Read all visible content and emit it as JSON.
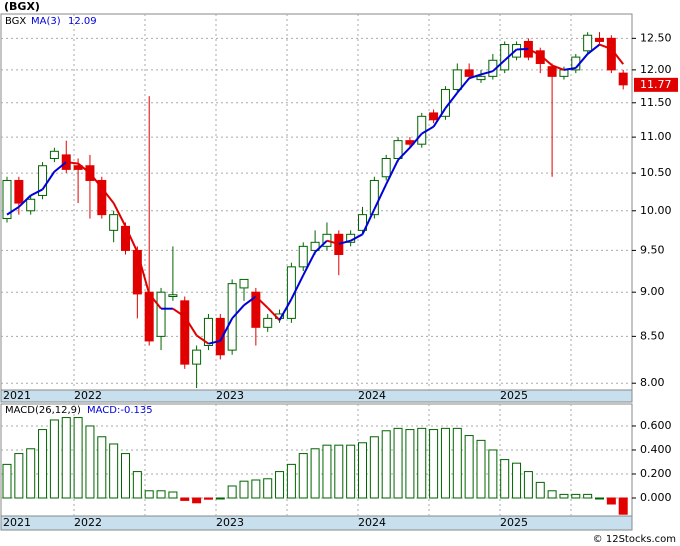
{
  "chart_data": [
    {
      "type": "candlestick",
      "title": "(BGX)",
      "name": "BGX",
      "ma_name": "MA(3)",
      "ma_last": 12.09,
      "last_price": 11.77,
      "open": [
        9.9,
        10.4,
        10.0,
        10.2,
        10.7,
        10.75,
        10.6,
        10.6,
        10.4,
        9.75,
        9.8,
        9.5,
        9.0,
        8.5,
        8.95,
        8.9,
        8.2,
        8.4,
        8.7,
        8.35,
        9.05,
        9.0,
        8.6,
        8.7,
        8.7,
        9.3,
        9.5,
        9.55,
        9.7,
        9.6,
        9.75,
        9.95,
        10.45,
        10.7,
        10.95,
        10.9,
        11.35,
        11.3,
        11.7,
        12.0,
        11.85,
        11.9,
        12.0,
        12.2,
        12.45,
        12.3,
        12.05,
        11.9,
        12.0,
        12.3,
        12.5,
        12.5,
        11.95
      ],
      "high": [
        10.45,
        10.45,
        10.2,
        10.65,
        10.85,
        10.95,
        10.7,
        10.75,
        10.45,
        10.0,
        9.85,
        9.55,
        11.6,
        9.05,
        9.55,
        8.95,
        8.4,
        8.75,
        8.75,
        9.15,
        9.15,
        9.05,
        8.75,
        8.8,
        9.35,
        9.6,
        9.75,
        9.85,
        9.75,
        9.75,
        10.05,
        10.45,
        10.75,
        11.0,
        11.0,
        11.35,
        11.4,
        11.75,
        12.1,
        12.1,
        12.0,
        12.25,
        12.45,
        12.45,
        12.5,
        12.35,
        12.1,
        12.05,
        12.25,
        12.6,
        12.6,
        12.55,
        12.0
      ],
      "low": [
        9.85,
        9.95,
        9.95,
        10.15,
        10.65,
        10.5,
        10.1,
        9.9,
        9.9,
        9.6,
        9.45,
        8.7,
        8.4,
        8.35,
        8.9,
        8.15,
        7.95,
        8.35,
        8.25,
        8.3,
        8.9,
        8.4,
        8.55,
        8.65,
        8.65,
        9.25,
        9.45,
        9.5,
        9.2,
        9.55,
        9.7,
        9.9,
        10.4,
        10.65,
        10.85,
        10.85,
        11.2,
        11.25,
        11.65,
        11.85,
        11.8,
        11.85,
        11.95,
        12.15,
        12.15,
        11.95,
        10.45,
        11.85,
        11.95,
        12.25,
        12.4,
        11.95,
        11.7
      ],
      "close": [
        10.4,
        10.1,
        10.15,
        10.6,
        10.8,
        10.55,
        10.55,
        10.4,
        9.95,
        9.95,
        9.5,
        8.98,
        8.45,
        9.0,
        8.97,
        8.2,
        8.35,
        8.7,
        8.3,
        9.1,
        9.15,
        8.6,
        8.7,
        8.75,
        9.3,
        9.55,
        9.6,
        9.7,
        9.45,
        9.7,
        9.95,
        10.4,
        10.7,
        10.95,
        10.9,
        11.3,
        11.25,
        11.7,
        12.0,
        11.9,
        11.9,
        12.15,
        12.4,
        12.4,
        12.2,
        12.1,
        11.9,
        12.0,
        12.2,
        12.55,
        12.45,
        12.0,
        11.77
      ],
      "ma": [
        9.95,
        10.05,
        10.2,
        10.28,
        10.52,
        10.65,
        10.63,
        10.5,
        10.3,
        10.1,
        9.8,
        9.48,
        8.98,
        8.81,
        8.81,
        8.72,
        8.51,
        8.42,
        8.45,
        8.7,
        8.85,
        8.95,
        8.82,
        8.68,
        8.92,
        9.2,
        9.48,
        9.62,
        9.58,
        9.62,
        9.7,
        10.02,
        10.35,
        10.68,
        10.85,
        11.05,
        11.15,
        11.42,
        11.65,
        11.87,
        11.93,
        11.98,
        12.15,
        12.32,
        12.33,
        12.23,
        12.07,
        12.0,
        12.03,
        12.25,
        12.4,
        12.33,
        12.09
      ],
      "up_color": "#006400",
      "down_color": "#e00000",
      "ma_up_color": "#0000dd",
      "ma_down_color": "#e00000",
      "log": true,
      "ylim": [
        7.93,
        12.9
      ],
      "yticks": [
        {
          "value": 8,
          "label": "8.00"
        },
        {
          "value": 8.5,
          "label": "8.50"
        },
        {
          "value": 9,
          "label": "9.00"
        },
        {
          "value": 9.5,
          "label": "9.50"
        },
        {
          "value": 10,
          "label": "10.00"
        },
        {
          "value": 10.5,
          "label": "10.50"
        },
        {
          "value": 11,
          "label": "11.00"
        },
        {
          "value": 11.5,
          "label": "11.50"
        },
        {
          "value": 12,
          "label": "12.00"
        },
        {
          "value": 12.5,
          "label": "12.50"
        }
      ],
      "years": [
        "2021",
        "2022",
        "2023",
        "2024",
        "2025"
      ]
    },
    {
      "type": "bar",
      "title": "MACD(26,12,9)",
      "legend": "MACD:-0.135",
      "values": [
        0.28,
        0.37,
        0.41,
        0.57,
        0.65,
        0.67,
        0.67,
        0.6,
        0.51,
        0.45,
        0.37,
        0.22,
        0.06,
        0.06,
        0.05,
        -0.02,
        -0.04,
        -0.01,
        0.0,
        0.1,
        0.14,
        0.15,
        0.16,
        0.22,
        0.28,
        0.37,
        0.41,
        0.44,
        0.44,
        0.44,
        0.46,
        0.51,
        0.56,
        0.58,
        0.57,
        0.58,
        0.57,
        0.58,
        0.58,
        0.52,
        0.48,
        0.4,
        0.32,
        0.29,
        0.22,
        0.13,
        0.06,
        0.03,
        0.03,
        0.03,
        0.0,
        -0.05,
        -0.135
      ],
      "up_color": "#006400",
      "down_color": "#e00000",
      "ylim": [
        -0.15,
        0.783
      ],
      "yticks": [
        {
          "value": 0,
          "label": "0.000"
        },
        {
          "value": 0.2,
          "label": "0.200"
        },
        {
          "value": 0.4,
          "label": "0.400"
        },
        {
          "value": 0.6,
          "label": "0.600"
        }
      ],
      "years": [
        "2021",
        "2022",
        "2023",
        "2024",
        "2025"
      ]
    }
  ],
  "footer": "© 12Stocks.com"
}
